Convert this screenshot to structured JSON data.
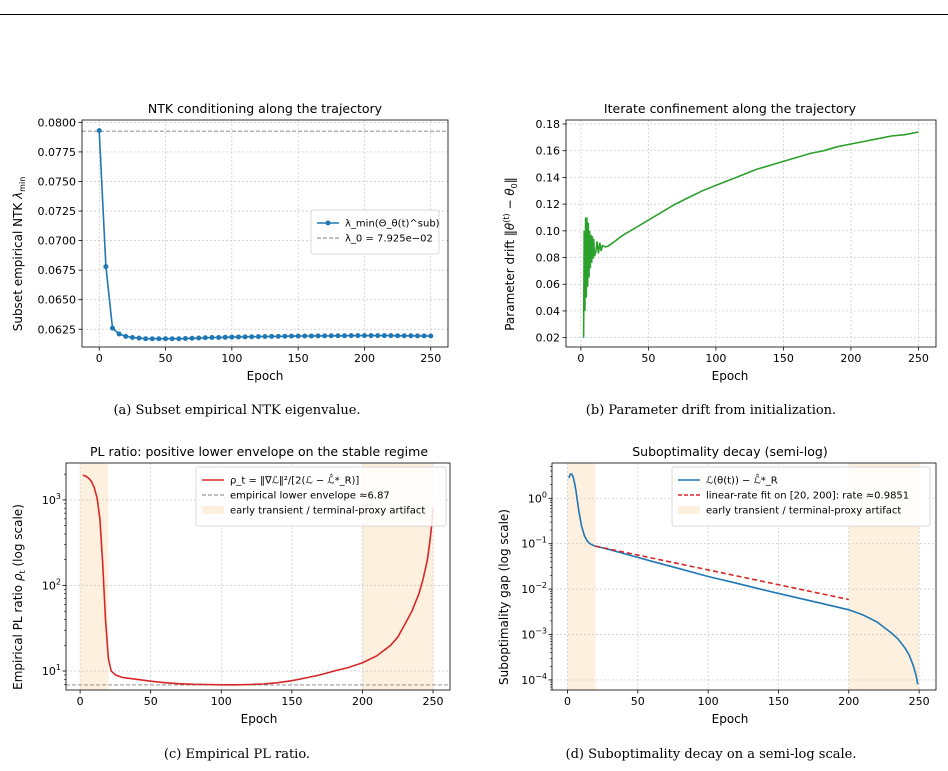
{
  "captions": {
    "a": "(a) Subset empirical NTK eigenvalue.",
    "b": "(b) Parameter drift from initialization.",
    "c": "(c) Empirical PL ratio.",
    "d": "(d) Suboptimality decay on a semi-log scale."
  },
  "chart_data": [
    {
      "id": "a",
      "type": "line",
      "title": "NTK conditioning along the trajectory",
      "xlabel": "Epoch",
      "ylabel": "Subset empirical NTK λ_min",
      "xlim": [
        -13,
        263
      ],
      "ylim": [
        0.061,
        0.0802
      ],
      "xticks": [
        0,
        50,
        100,
        150,
        200,
        250
      ],
      "yticks": [
        0.0625,
        0.065,
        0.0675,
        0.07,
        0.0725,
        0.075,
        0.0775,
        0.08
      ],
      "ytick_labels": [
        "0.0625",
        "0.0650",
        "0.0675",
        "0.0700",
        "0.0725",
        "0.0750",
        "0.0775",
        "0.0800"
      ],
      "grid": true,
      "legend_position": "center-right",
      "series": [
        {
          "name": "λ_min(Θ_θ(t)^sub)",
          "color": "#1f77b4",
          "marker": "circle",
          "x": [
            0,
            5,
            10,
            15,
            20,
            25,
            30,
            35,
            40,
            45,
            50,
            55,
            60,
            65,
            70,
            75,
            80,
            85,
            90,
            95,
            100,
            105,
            110,
            115,
            120,
            125,
            130,
            135,
            140,
            145,
            150,
            155,
            160,
            165,
            170,
            175,
            180,
            185,
            190,
            195,
            200,
            205,
            210,
            215,
            220,
            225,
            230,
            235,
            240,
            245,
            250
          ],
          "y": [
            0.0793,
            0.0678,
            0.0626,
            0.0621,
            0.0619,
            0.0618,
            0.06175,
            0.0617,
            0.0617,
            0.0617,
            0.0617,
            0.0617,
            0.0617,
            0.06172,
            0.06174,
            0.06176,
            0.06178,
            0.0618,
            0.0618,
            0.06182,
            0.06184,
            0.06185,
            0.06186,
            0.06187,
            0.06188,
            0.06189,
            0.0619,
            0.0619,
            0.06191,
            0.06192,
            0.06192,
            0.06193,
            0.06193,
            0.06194,
            0.06194,
            0.06195,
            0.06195,
            0.06195,
            0.06196,
            0.06196,
            0.06196,
            0.06196,
            0.06196,
            0.06196,
            0.06196,
            0.06195,
            0.06195,
            0.06195,
            0.06194,
            0.06194,
            0.06193
          ]
        }
      ],
      "hlines": [
        {
          "name": "λ_0 = 7.925e−02",
          "y": 0.07925,
          "color": "#808080",
          "style": "dashed"
        }
      ]
    },
    {
      "id": "b",
      "type": "line",
      "title": "Iterate confinement along the trajectory",
      "xlabel": "Epoch",
      "ylabel": "Parameter drift ‖θ(t) − θ0‖",
      "xlim": [
        -11,
        263
      ],
      "ylim": [
        0.013,
        0.183
      ],
      "xticks": [
        0,
        50,
        100,
        150,
        200,
        250
      ],
      "yticks": [
        0.02,
        0.04,
        0.06,
        0.08,
        0.1,
        0.12,
        0.14,
        0.16,
        0.18
      ],
      "ytick_labels": [
        "0.02",
        "0.04",
        "0.06",
        "0.08",
        "0.10",
        "0.12",
        "0.14",
        "0.16",
        "0.18"
      ],
      "grid": true,
      "series": [
        {
          "color": "#2ca02c",
          "x": [
            2,
            2.5,
            3,
            3.5,
            4,
            4.5,
            5,
            5.5,
            6,
            6.5,
            7,
            7.5,
            8,
            8.5,
            9,
            9.5,
            10,
            11,
            12,
            13,
            14,
            15,
            16,
            18,
            20,
            25,
            30,
            35,
            40,
            50,
            60,
            70,
            80,
            90,
            100,
            110,
            120,
            130,
            140,
            150,
            160,
            170,
            180,
            190,
            200,
            210,
            220,
            230,
            240,
            250
          ],
          "y": [
            0.02,
            0.1,
            0.04,
            0.11,
            0.05,
            0.11,
            0.058,
            0.106,
            0.065,
            0.1,
            0.072,
            0.097,
            0.076,
            0.096,
            0.079,
            0.094,
            0.081,
            0.084,
            0.092,
            0.083,
            0.091,
            0.085,
            0.089,
            0.088,
            0.0885,
            0.092,
            0.096,
            0.099,
            0.102,
            0.108,
            0.114,
            0.12,
            0.125,
            0.13,
            0.134,
            0.138,
            0.142,
            0.146,
            0.149,
            0.152,
            0.155,
            0.158,
            0.16,
            0.163,
            0.165,
            0.167,
            0.169,
            0.171,
            0.172,
            0.174
          ]
        }
      ]
    },
    {
      "id": "c",
      "type": "line",
      "title": "PL ratio: positive lower envelope on the stable regime",
      "xlabel": "Epoch",
      "ylabel": "Empirical PL ratio ρ_t (log scale)",
      "yscale": "log",
      "xlim": [
        -10,
        262
      ],
      "ylim": [
        6.0,
        2700
      ],
      "xticks": [
        0,
        50,
        100,
        150,
        200,
        250
      ],
      "yticks": [
        10,
        100,
        1000
      ],
      "ytick_labels": [
        "10",
        "10",
        "10"
      ],
      "ytick_exponents": [
        "1",
        "2",
        "3"
      ],
      "grid": true,
      "legend_position": "upper-right",
      "shaded_regions": [
        {
          "name": "early transient / terminal-proxy artifact",
          "x0": 0,
          "x1": 20,
          "color": "#fdf0de"
        },
        {
          "x0": 200,
          "x1": 250,
          "color": "#fdf0de"
        }
      ],
      "series": [
        {
          "name": "ρ_t = ‖∇ℒ‖²/[2(ℒ − ℒ̂*_R)]",
          "color": "#d62728",
          "x": [
            2,
            4,
            6,
            8,
            10,
            12,
            14,
            16,
            18,
            20,
            22,
            25,
            30,
            40,
            50,
            60,
            70,
            80,
            90,
            100,
            110,
            120,
            130,
            140,
            150,
            160,
            170,
            180,
            190,
            200,
            210,
            220,
            225,
            230,
            235,
            240,
            243,
            246,
            248,
            249,
            250
          ],
          "y": [
            1950,
            1900,
            1800,
            1650,
            1400,
            1050,
            600,
            180,
            40,
            14,
            10,
            9.0,
            8.4,
            8.0,
            7.6,
            7.3,
            7.1,
            7.0,
            6.95,
            6.9,
            6.9,
            6.95,
            7.05,
            7.3,
            7.7,
            8.3,
            9.0,
            10.0,
            11.0,
            12.5,
            15,
            20,
            25,
            35,
            50,
            80,
            120,
            200,
            350,
            500,
            800
          ]
        }
      ],
      "hlines": [
        {
          "name": "empirical lower envelope ≈6.87",
          "y": 6.87,
          "color": "#808080",
          "style": "dashed"
        }
      ]
    },
    {
      "id": "d",
      "type": "line",
      "title": "Suboptimality decay (semi-log)",
      "xlabel": "Epoch",
      "ylabel": "Suboptimality gap (log scale)",
      "yscale": "log",
      "xlim": [
        -11,
        262
      ],
      "ylim": [
        6e-05,
        6.0
      ],
      "xticks": [
        0,
        50,
        100,
        150,
        200,
        250
      ],
      "yticks": [
        0.0001,
        0.001,
        0.01,
        0.1,
        1
      ],
      "ytick_labels": [
        "10",
        "10",
        "10",
        "10",
        "10"
      ],
      "ytick_exponents": [
        "−4",
        "−3",
        "−2",
        "−1",
        "0"
      ],
      "grid": true,
      "legend_position": "upper-right",
      "shaded_regions": [
        {
          "name": "early transient / terminal-proxy artifact",
          "x0": 0,
          "x1": 20,
          "color": "#fdf0de"
        },
        {
          "x0": 200,
          "x1": 250,
          "color": "#fdf0de"
        }
      ],
      "series": [
        {
          "name": "ℒ(θ(t)) − ℒ̂*_R",
          "color": "#1f77b4",
          "x": [
            1,
            2,
            3,
            4,
            5,
            6,
            7,
            8,
            10,
            12,
            14,
            16,
            18,
            20,
            22,
            25,
            30,
            40,
            50,
            60,
            80,
            100,
            120,
            140,
            160,
            180,
            200,
            210,
            220,
            230,
            235,
            240,
            243,
            246,
            248,
            249
          ],
          "y": [
            2.8,
            3.4,
            3.4,
            3.0,
            2.2,
            1.5,
            0.9,
            0.55,
            0.25,
            0.15,
            0.115,
            0.1,
            0.093,
            0.088,
            0.085,
            0.081,
            0.074,
            0.061,
            0.05,
            0.041,
            0.028,
            0.019,
            0.0135,
            0.0095,
            0.0068,
            0.0049,
            0.0035,
            0.0027,
            0.0019,
            0.0011,
            0.0008,
            0.0005,
            0.00035,
            0.0002,
            0.00012,
            8e-05
          ]
        },
        {
          "name": "linear-rate fit on [20, 200]: rate ≈0.9851",
          "color": "#d62728",
          "style": "dashed",
          "x": [
            20,
            200
          ],
          "y": [
            0.088,
            0.0059
          ]
        }
      ]
    }
  ]
}
